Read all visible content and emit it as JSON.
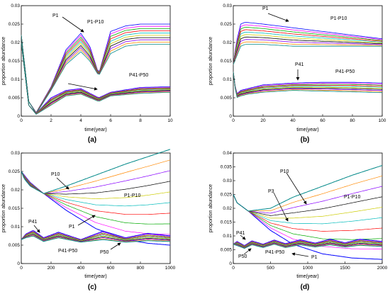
{
  "chart_data": [
    {
      "type": "line",
      "panel_label": "(a)",
      "xlabel": "time(year)",
      "ylabel": "proportion abundance",
      "xlim": [
        0,
        10
      ],
      "ylim": [
        0,
        0.03
      ],
      "xticks": [
        "0",
        "2",
        "4",
        "6",
        "8",
        "10"
      ],
      "yticks": [
        "0",
        "0.005",
        "0.01",
        "0.015",
        "0.02",
        "0.025",
        "0.03"
      ],
      "grid": false,
      "annotations": [
        "P1",
        "P1-P10",
        "P41-P50"
      ],
      "series_groups": [
        {
          "label": "P1-P10",
          "x": [
            0,
            0.5,
            1,
            2,
            3,
            4,
            4.6,
            5.2,
            6,
            7,
            8,
            10
          ],
          "upper": [
            0.022,
            0.004,
            0.001,
            0.008,
            0.018,
            0.0225,
            0.019,
            0.0115,
            0.023,
            0.0245,
            0.025,
            0.025
          ],
          "lower": [
            0.022,
            0.004,
            0.0007,
            0.007,
            0.014,
            0.0175,
            0.015,
            0.011,
            0.017,
            0.019,
            0.0195,
            0.0195
          ]
        },
        {
          "label": "P41-P50",
          "x": [
            0,
            0.5,
            1,
            2,
            3,
            4,
            5.2,
            6,
            8,
            10
          ],
          "upper": [
            0.02,
            0.003,
            0.0008,
            0.005,
            0.007,
            0.0075,
            0.005,
            0.0065,
            0.0078,
            0.008
          ],
          "lower": [
            0.02,
            0.003,
            0.0005,
            0.003,
            0.0055,
            0.006,
            0.004,
            0.0055,
            0.0062,
            0.0065
          ]
        }
      ]
    },
    {
      "type": "line",
      "panel_label": "(b)",
      "xlabel": "time(year)",
      "ylabel": "proportion abundance",
      "xlim": [
        0,
        100
      ],
      "ylim": [
        0,
        0.03
      ],
      "xticks": [
        "0",
        "20",
        "40",
        "60",
        "80",
        "100"
      ],
      "yticks": [
        "0",
        "0.005",
        "0.01",
        "0.015",
        "0.02",
        "0.025",
        "0.03"
      ],
      "grid": false,
      "annotations": [
        "P1",
        "P1-P10",
        "P41",
        "P41-P50"
      ],
      "series_groups": [
        {
          "label": "P1-P10",
          "x": [
            0,
            2,
            5,
            8,
            20,
            40,
            60,
            80,
            100
          ],
          "upper": [
            0.014,
            0.02,
            0.025,
            0.0255,
            0.025,
            0.024,
            0.023,
            0.022,
            0.021
          ],
          "lower": [
            0.014,
            0.016,
            0.019,
            0.0195,
            0.0195,
            0.019,
            0.019,
            0.019,
            0.019
          ]
        },
        {
          "label": "P41-P50",
          "x": [
            0,
            2,
            5,
            10,
            20,
            40,
            60,
            80,
            100
          ],
          "upper": [
            0.012,
            0.006,
            0.007,
            0.0075,
            0.0085,
            0.009,
            0.0092,
            0.0092,
            0.009
          ],
          "lower": [
            0.012,
            0.005,
            0.0055,
            0.006,
            0.0065,
            0.007,
            0.0068,
            0.0066,
            0.0064
          ]
        }
      ]
    },
    {
      "type": "line",
      "panel_label": "(c)",
      "xlabel": "time(year)",
      "ylabel": "proportion abundance",
      "xlim": [
        0,
        1000
      ],
      "ylim": [
        0,
        0.03
      ],
      "xticks": [
        "0",
        "200",
        "400",
        "600",
        "800",
        "1000"
      ],
      "yticks": [
        "0",
        "0.005",
        "0.01",
        "0.015",
        "0.02",
        "0.025",
        "0.03"
      ],
      "grid": false,
      "annotations": [
        "P10",
        "P1-P10",
        "P41",
        "P1",
        "P41-P50",
        "P50"
      ],
      "series": [
        {
          "name": "P1",
          "x": [
            0,
            20,
            60,
            150,
            300,
            500,
            700,
            850,
            1000
          ],
          "y": [
            0.025,
            0.024,
            0.022,
            0.019,
            0.0145,
            0.0095,
            0.0065,
            0.0055,
            0.005
          ]
        },
        {
          "name": "P10",
          "x": [
            0,
            20,
            60,
            150,
            300,
            500,
            700,
            850,
            1000
          ],
          "y": [
            0.025,
            0.023,
            0.021,
            0.019,
            0.021,
            0.024,
            0.027,
            0.029,
            0.031
          ]
        },
        {
          "name": "P41",
          "x": [
            0,
            30,
            80,
            150,
            250,
            400,
            550,
            700,
            850,
            1000
          ],
          "y": [
            0.0065,
            0.008,
            0.009,
            0.007,
            0.0085,
            0.0065,
            0.0088,
            0.007,
            0.0082,
            0.0075
          ]
        },
        {
          "name": "P50",
          "x": [
            0,
            30,
            80,
            150,
            250,
            400,
            550,
            700,
            850,
            1000
          ],
          "y": [
            0.0065,
            0.007,
            0.0075,
            0.006,
            0.007,
            0.0058,
            0.0065,
            0.0058,
            0.0062,
            0.006
          ]
        }
      ]
    },
    {
      "type": "line",
      "panel_label": "(d)",
      "xlabel": "time(year)",
      "ylabel": "proportion abundance",
      "xlim": [
        0,
        2000
      ],
      "ylim": [
        0,
        0.04
      ],
      "xticks": [
        "0",
        "500",
        "1000",
        "1500",
        "2000"
      ],
      "yticks": [
        "0",
        "0.005",
        "0.01",
        "0.015",
        "0.02",
        "0.025",
        "0.03",
        "0.035",
        "0.04"
      ],
      "grid": false,
      "annotations": [
        "P10",
        "P3",
        "P1-P10",
        "P41",
        "P50",
        "P41-P50",
        "P1"
      ],
      "series": [
        {
          "name": "P1",
          "x": [
            0,
            50,
            200,
            500,
            800,
            1200,
            1600,
            2000
          ],
          "y": [
            0.025,
            0.022,
            0.019,
            0.012,
            0.007,
            0.0035,
            0.002,
            0.0015
          ]
        },
        {
          "name": "P10",
          "x": [
            0,
            50,
            200,
            500,
            800,
            1200,
            1600,
            2000
          ],
          "y": [
            0.025,
            0.022,
            0.019,
            0.02,
            0.024,
            0.028,
            0.032,
            0.0355
          ]
        },
        {
          "name": "P41",
          "x": [
            0,
            50,
            150,
            250,
            400,
            550,
            700,
            900,
            1100,
            1300,
            1500,
            1700,
            2000
          ],
          "y": [
            0.007,
            0.008,
            0.0065,
            0.0082,
            0.007,
            0.0085,
            0.0072,
            0.0086,
            0.0074,
            0.0088,
            0.0075,
            0.0088,
            0.008
          ]
        },
        {
          "name": "P50",
          "x": [
            0,
            50,
            150,
            250,
            400,
            550,
            700,
            900,
            1100,
            1300,
            1500,
            1700,
            2000
          ],
          "y": [
            0.007,
            0.0065,
            0.0055,
            0.0068,
            0.0058,
            0.007,
            0.0058,
            0.0068,
            0.006,
            0.0068,
            0.006,
            0.0066,
            0.0062
          ]
        }
      ]
    }
  ]
}
